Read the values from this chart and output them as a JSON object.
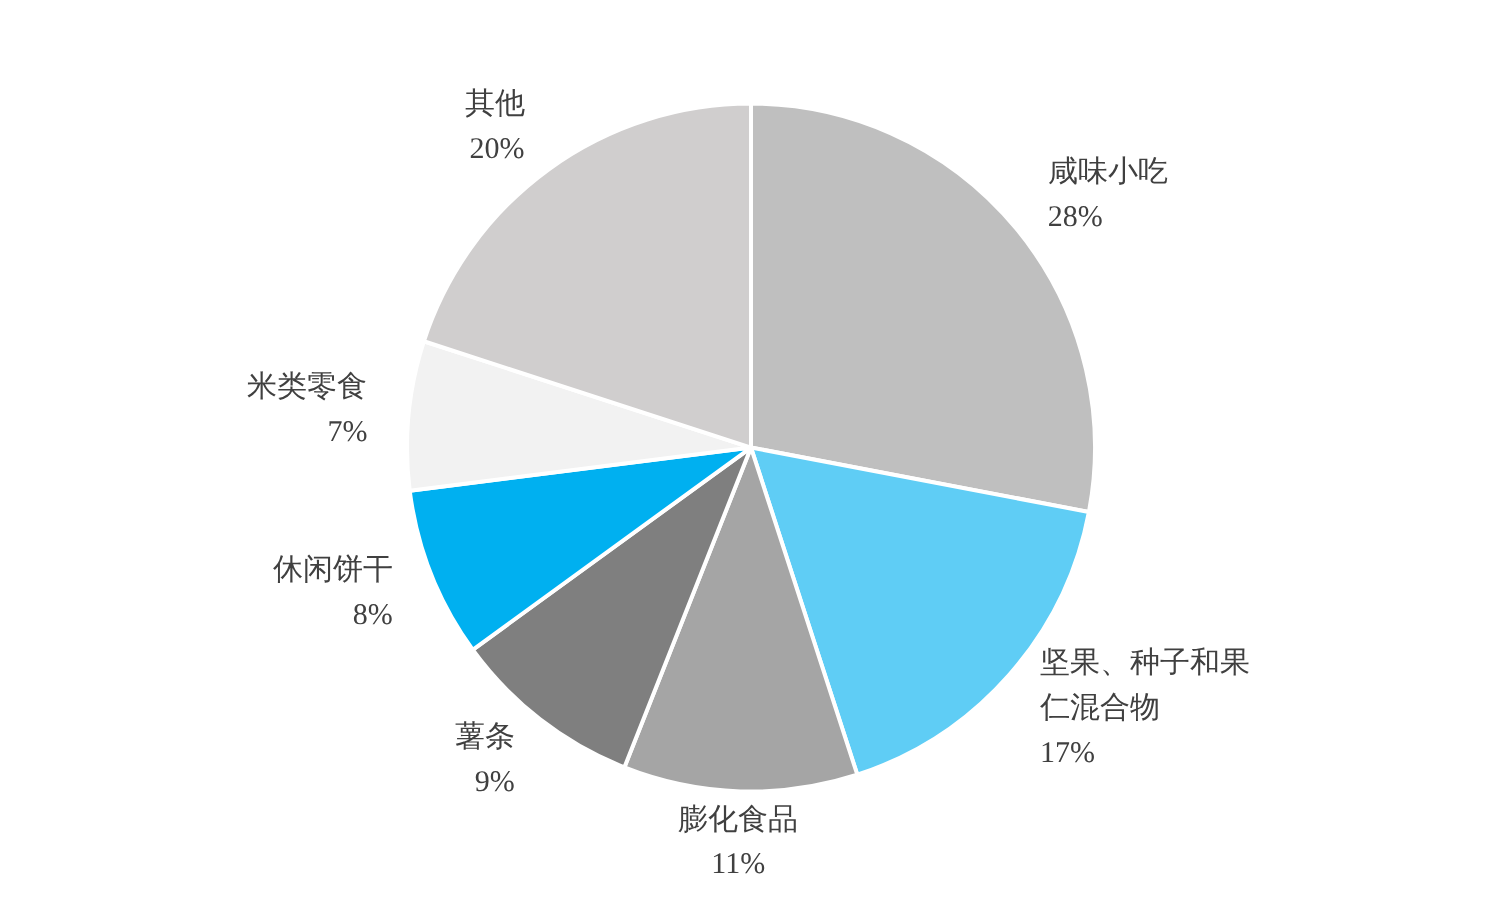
{
  "chart_data": {
    "type": "pie",
    "categories": [
      "咸味小吃",
      "坚果、种子和果仁混合物",
      "膨化食品",
      "薯条",
      "休闲饼干",
      "米类零食",
      "其他"
    ],
    "values": [
      28,
      17,
      11,
      9,
      8,
      7,
      20
    ],
    "value_labels": [
      "28%",
      "17%",
      "11%",
      "9%",
      "8%",
      "7%",
      "20%"
    ],
    "colors": [
      "#bfbfbf",
      "#5fcdf5",
      "#a5a5a5",
      "#7f7f7f",
      "#00b0f0",
      "#f2f2f2",
      "#d0cece"
    ]
  }
}
